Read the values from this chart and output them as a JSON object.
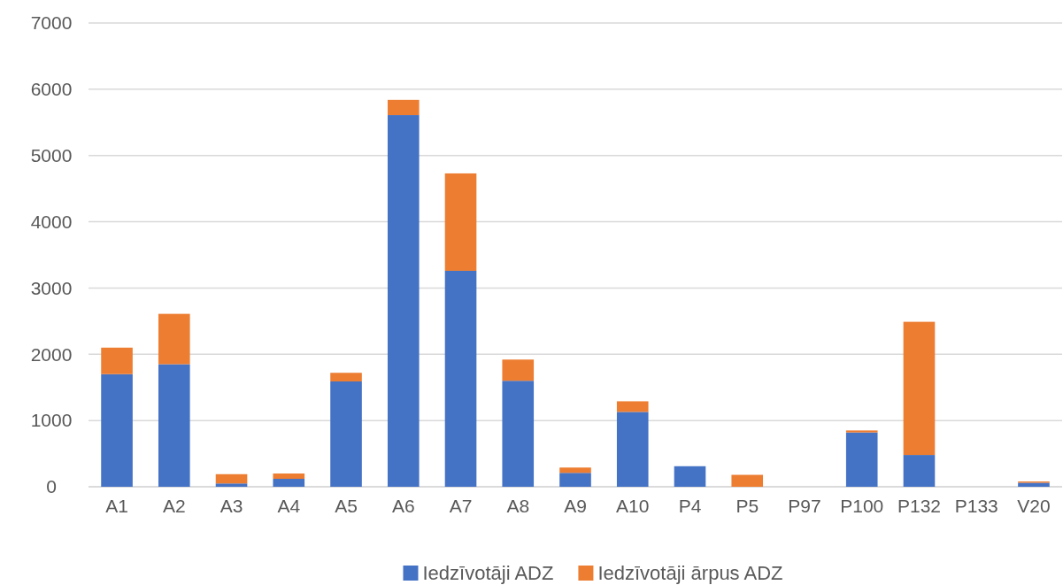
{
  "chart_data": {
    "type": "bar",
    "stacked": true,
    "categories": [
      "A1",
      "A2",
      "A3",
      "A4",
      "A5",
      "A6",
      "A7",
      "A8",
      "A9",
      "A10",
      "P4",
      "P5",
      "P97",
      "P100",
      "P132",
      "P133",
      "V20"
    ],
    "series": [
      {
        "name": "Iedzīvotāji ADZ",
        "color": "#4472c4",
        "values": [
          1700,
          1850,
          50,
          120,
          1590,
          5610,
          3260,
          1600,
          210,
          1130,
          310,
          0,
          0,
          820,
          480,
          0,
          60
        ]
      },
      {
        "name": "Iedzīvotāji ārpus ADZ",
        "color": "#ed7d31",
        "values": [
          400,
          760,
          140,
          80,
          130,
          230,
          1470,
          320,
          80,
          160,
          null,
          180,
          null,
          30,
          2010,
          null,
          20
        ]
      }
    ],
    "ylim": [
      0,
      7000
    ],
    "yticks": [
      0,
      1000,
      2000,
      3000,
      4000,
      5000,
      6000,
      7000
    ],
    "grid": "y",
    "legend": "bottom"
  }
}
